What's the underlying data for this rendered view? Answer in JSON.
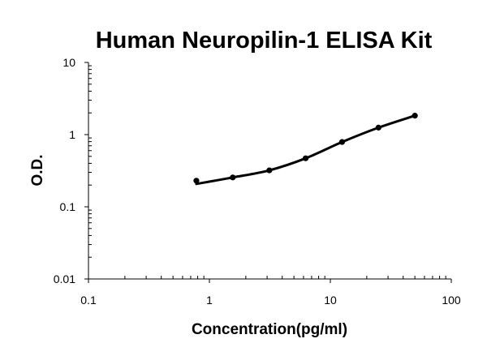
{
  "chart_data": {
    "type": "scatter",
    "title": "Human Neuropilin-1 ELISA Kit",
    "xlabel": "Concentration(pg/ml)",
    "ylabel": "O.D.",
    "xscale": "log",
    "yscale": "log",
    "xlim": [
      0.1,
      100
    ],
    "ylim": [
      0.01,
      10
    ],
    "x_ticks": [
      "0.1",
      "1",
      "10",
      "100"
    ],
    "y_ticks": [
      "0.01",
      "0.1",
      "1",
      "10"
    ],
    "grid": false,
    "legend": "none",
    "fit_line": true,
    "series": [
      {
        "color": "#000000",
        "x": [
          0.78,
          1.56,
          3.13,
          6.25,
          12.5,
          25,
          50
        ],
        "y": [
          0.23,
          0.255,
          0.32,
          0.47,
          0.79,
          1.25,
          1.83
        ]
      }
    ]
  }
}
